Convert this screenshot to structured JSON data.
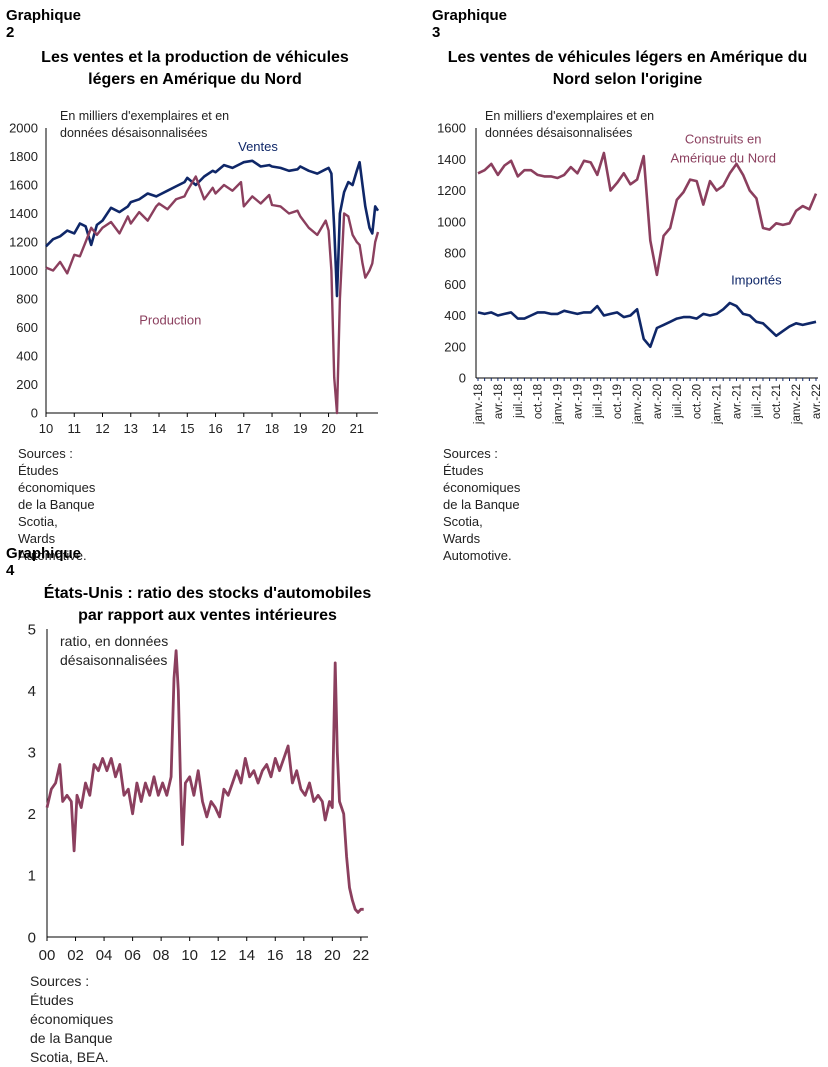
{
  "charts": [
    {
      "label": "Graphique 2",
      "title_lines": [
        "Les ventes et la production de véhicules",
        "légers en Amérique du Nord"
      ],
      "unit_lines": [
        "En milliers d'exemplaires et en",
        "données désaisonnalisées"
      ],
      "source_lines": [
        "Sources : Études économiques de la Banque Scotia,",
        "Wards Automotive."
      ]
    },
    {
      "label": "Graphique 3",
      "title_lines": [
        "Les ventes de véhicules légers en Amérique du",
        "Nord selon l'origine"
      ],
      "unit_lines": [
        "En milliers d'exemplaires et en",
        "données désaisonnalisées"
      ],
      "source_lines": [
        "Sources : Études économiques de la Banque Scotia, Wards",
        "Automotive."
      ]
    },
    {
      "label": "Graphique 4",
      "title_lines": [
        "États-Unis : ratio des stocks d'automobiles",
        "par rapport aux ventes intérieures"
      ],
      "unit_lines": [
        "ratio, en données",
        "désaisonnalisées"
      ],
      "source_lines": [
        "Sources : Études économiques de la Banque",
        "Scotia, BEA."
      ]
    }
  ],
  "colors": {
    "navy": "#0f2768",
    "maroon": "#8b3f5e"
  },
  "chart_data": [
    {
      "type": "line",
      "title": "Les ventes et la production de véhicules légers en Amérique du Nord",
      "ylabel": "En milliers d'exemplaires et en données désaisonnalisées",
      "ylim": [
        0,
        2000
      ],
      "yticks": [
        "0",
        "200",
        "400",
        "600",
        "800",
        "1000",
        "1200",
        "1400",
        "1600",
        "1800",
        "2000"
      ],
      "xlim": [
        2010,
        2021.75
      ],
      "xticks": [
        "10",
        "11",
        "12",
        "13",
        "14",
        "15",
        "16",
        "17",
        "18",
        "19",
        "20",
        "21"
      ],
      "series": [
        {
          "name": "Ventes",
          "color": "#0f2768",
          "label_pos": [
            2016.8,
            1840
          ],
          "points": [
            [
              2010,
              1170
            ],
            [
              2010.25,
              1220
            ],
            [
              2010.5,
              1240
            ],
            [
              2010.75,
              1280
            ],
            [
              2011,
              1260
            ],
            [
              2011.2,
              1330
            ],
            [
              2011.4,
              1310
            ],
            [
              2011.6,
              1180
            ],
            [
              2011.8,
              1320
            ],
            [
              2012,
              1350
            ],
            [
              2012.3,
              1440
            ],
            [
              2012.6,
              1410
            ],
            [
              2012.9,
              1450
            ],
            [
              2013,
              1480
            ],
            [
              2013.3,
              1500
            ],
            [
              2013.6,
              1540
            ],
            [
              2013.9,
              1520
            ],
            [
              2014,
              1530
            ],
            [
              2014.3,
              1560
            ],
            [
              2014.6,
              1590
            ],
            [
              2014.9,
              1620
            ],
            [
              2015,
              1650
            ],
            [
              2015.3,
              1600
            ],
            [
              2015.6,
              1660
            ],
            [
              2015.9,
              1700
            ],
            [
              2016,
              1690
            ],
            [
              2016.3,
              1740
            ],
            [
              2016.6,
              1720
            ],
            [
              2016.9,
              1750
            ],
            [
              2017,
              1760
            ],
            [
              2017.3,
              1770
            ],
            [
              2017.6,
              1730
            ],
            [
              2017.9,
              1740
            ],
            [
              2018,
              1730
            ],
            [
              2018.3,
              1720
            ],
            [
              2018.6,
              1700
            ],
            [
              2018.9,
              1710
            ],
            [
              2019,
              1730
            ],
            [
              2019.3,
              1700
            ],
            [
              2019.6,
              1680
            ],
            [
              2019.9,
              1710
            ],
            [
              2020,
              1720
            ],
            [
              2020.1,
              1680
            ],
            [
              2020.2,
              1300
            ],
            [
              2020.3,
              820
            ],
            [
              2020.4,
              1400
            ],
            [
              2020.55,
              1550
            ],
            [
              2020.7,
              1620
            ],
            [
              2020.85,
              1600
            ],
            [
              2021,
              1700
            ],
            [
              2021.1,
              1760
            ],
            [
              2021.2,
              1600
            ],
            [
              2021.3,
              1450
            ],
            [
              2021.45,
              1300
            ],
            [
              2021.55,
              1260
            ],
            [
              2021.65,
              1450
            ],
            [
              2021.75,
              1420
            ]
          ]
        },
        {
          "name": "Production",
          "color": "#8b3f5e",
          "label_pos": [
            2013.3,
            620
          ],
          "points": [
            [
              2010,
              1020
            ],
            [
              2010.25,
              1000
            ],
            [
              2010.5,
              1060
            ],
            [
              2010.75,
              980
            ],
            [
              2011,
              1110
            ],
            [
              2011.2,
              1100
            ],
            [
              2011.4,
              1200
            ],
            [
              2011.6,
              1300
            ],
            [
              2011.8,
              1250
            ],
            [
              2012,
              1300
            ],
            [
              2012.3,
              1340
            ],
            [
              2012.6,
              1260
            ],
            [
              2012.9,
              1380
            ],
            [
              2013,
              1330
            ],
            [
              2013.3,
              1410
            ],
            [
              2013.6,
              1350
            ],
            [
              2013.9,
              1450
            ],
            [
              2014,
              1470
            ],
            [
              2014.3,
              1430
            ],
            [
              2014.6,
              1500
            ],
            [
              2014.9,
              1520
            ],
            [
              2015,
              1560
            ],
            [
              2015.3,
              1660
            ],
            [
              2015.6,
              1500
            ],
            [
              2015.9,
              1580
            ],
            [
              2016,
              1540
            ],
            [
              2016.3,
              1600
            ],
            [
              2016.6,
              1560
            ],
            [
              2016.9,
              1620
            ],
            [
              2017,
              1450
            ],
            [
              2017.3,
              1520
            ],
            [
              2017.6,
              1470
            ],
            [
              2017.9,
              1530
            ],
            [
              2018,
              1460
            ],
            [
              2018.3,
              1450
            ],
            [
              2018.6,
              1400
            ],
            [
              2018.9,
              1420
            ],
            [
              2019,
              1380
            ],
            [
              2019.3,
              1300
            ],
            [
              2019.6,
              1250
            ],
            [
              2019.9,
              1350
            ],
            [
              2020,
              1280
            ],
            [
              2020.1,
              1000
            ],
            [
              2020.2,
              250
            ],
            [
              2020.3,
              0
            ],
            [
              2020.4,
              800
            ],
            [
              2020.55,
              1400
            ],
            [
              2020.7,
              1380
            ],
            [
              2020.85,
              1250
            ],
            [
              2021,
              1200
            ],
            [
              2021.1,
              1180
            ],
            [
              2021.2,
              1050
            ],
            [
              2021.3,
              950
            ],
            [
              2021.45,
              1000
            ],
            [
              2021.55,
              1050
            ],
            [
              2021.65,
              1200
            ],
            [
              2021.75,
              1270
            ]
          ]
        }
      ]
    },
    {
      "type": "line",
      "title": "Les ventes de véhicules légers en Amérique du Nord selon l'origine",
      "ylabel": "En milliers d'exemplaires et en données désaisonnalisées",
      "ylim": [
        0,
        1600
      ],
      "yticks": [
        "0",
        "200",
        "400",
        "600",
        "800",
        "1000",
        "1200",
        "1400",
        "1600"
      ],
      "x_range_months": [
        "janv.-18",
        "avr.-22"
      ],
      "xticks": [
        "janv.-18",
        "avr.-18",
        "juil.-18",
        "oct.-18",
        "janv.-19",
        "avr.-19",
        "juil.-19",
        "oct.-19",
        "janv.-20",
        "avr.-20",
        "juil.-20",
        "oct.-20",
        "janv.-21",
        "avr.-21",
        "juil.-21",
        "oct.-21",
        "janv.-22",
        "avr.-22"
      ],
      "series": [
        {
          "name": "Construits en Amérique du Nord",
          "label_lines": [
            "Construits en",
            "Amérique du Nord"
          ],
          "color": "#8b3f5e",
          "label_pos": [
            37,
            1500
          ],
          "values": [
            1310,
            1330,
            1370,
            1300,
            1360,
            1390,
            1290,
            1330,
            1330,
            1300,
            1290,
            1290,
            1280,
            1300,
            1350,
            1310,
            1390,
            1380,
            1300,
            1440,
            1200,
            1250,
            1310,
            1240,
            1270,
            1420,
            880,
            660,
            910,
            960,
            1140,
            1190,
            1270,
            1260,
            1110,
            1260,
            1200,
            1230,
            1310,
            1370,
            1300,
            1200,
            1150,
            960,
            950,
            990,
            980,
            990,
            1070,
            1100,
            1080,
            1180
          ]
        },
        {
          "name": "Importés",
          "label_lines": [
            "Importés"
          ],
          "color": "#0f2768",
          "label_pos": [
            42,
            600
          ],
          "values": [
            420,
            410,
            420,
            400,
            410,
            420,
            380,
            380,
            400,
            420,
            420,
            410,
            410,
            430,
            420,
            410,
            420,
            420,
            460,
            400,
            410,
            420,
            390,
            400,
            440,
            250,
            200,
            320,
            340,
            360,
            380,
            390,
            390,
            380,
            410,
            400,
            410,
            440,
            480,
            460,
            410,
            400,
            360,
            350,
            310,
            270,
            300,
            330,
            350,
            340,
            350,
            360
          ]
        }
      ]
    },
    {
      "type": "line",
      "title": "États-Unis : ratio des stocks d'automobiles par rapport aux ventes intérieures",
      "ylabel": "ratio, en données désaisonnalisées",
      "ylim": [
        0,
        5
      ],
      "yticks": [
        "0",
        "1",
        "2",
        "3",
        "4",
        "5"
      ],
      "xlim": [
        2000,
        2022.5
      ],
      "xticks": [
        "00",
        "02",
        "04",
        "06",
        "08",
        "10",
        "12",
        "14",
        "16",
        "18",
        "20",
        "22"
      ],
      "series": [
        {
          "name": "ratio",
          "color": "#8b3f5e",
          "points": [
            [
              2000,
              2.1
            ],
            [
              2000.3,
              2.4
            ],
            [
              2000.6,
              2.5
            ],
            [
              2000.9,
              2.8
            ],
            [
              2001.1,
              2.2
            ],
            [
              2001.4,
              2.3
            ],
            [
              2001.7,
              2.2
            ],
            [
              2001.9,
              1.4
            ],
            [
              2002.1,
              2.3
            ],
            [
              2002.4,
              2.1
            ],
            [
              2002.7,
              2.5
            ],
            [
              2003,
              2.3
            ],
            [
              2003.3,
              2.8
            ],
            [
              2003.6,
              2.7
            ],
            [
              2003.9,
              2.9
            ],
            [
              2004.2,
              2.7
            ],
            [
              2004.5,
              2.9
            ],
            [
              2004.8,
              2.6
            ],
            [
              2005.1,
              2.8
            ],
            [
              2005.4,
              2.3
            ],
            [
              2005.7,
              2.4
            ],
            [
              2006,
              2.0
            ],
            [
              2006.3,
              2.5
            ],
            [
              2006.6,
              2.2
            ],
            [
              2006.9,
              2.5
            ],
            [
              2007.2,
              2.3
            ],
            [
              2007.5,
              2.6
            ],
            [
              2007.8,
              2.3
            ],
            [
              2008.1,
              2.5
            ],
            [
              2008.4,
              2.3
            ],
            [
              2008.7,
              2.6
            ],
            [
              2008.9,
              4.2
            ],
            [
              2009.05,
              4.65
            ],
            [
              2009.2,
              4.0
            ],
            [
              2009.35,
              2.6
            ],
            [
              2009.5,
              1.5
            ],
            [
              2009.7,
              2.5
            ],
            [
              2010,
              2.6
            ],
            [
              2010.3,
              2.3
            ],
            [
              2010.6,
              2.7
            ],
            [
              2010.9,
              2.2
            ],
            [
              2011.2,
              1.95
            ],
            [
              2011.5,
              2.2
            ],
            [
              2011.8,
              2.1
            ],
            [
              2012.1,
              1.95
            ],
            [
              2012.4,
              2.4
            ],
            [
              2012.7,
              2.3
            ],
            [
              2013,
              2.5
            ],
            [
              2013.3,
              2.7
            ],
            [
              2013.6,
              2.5
            ],
            [
              2013.9,
              2.9
            ],
            [
              2014.2,
              2.6
            ],
            [
              2014.5,
              2.7
            ],
            [
              2014.8,
              2.5
            ],
            [
              2015.1,
              2.7
            ],
            [
              2015.4,
              2.8
            ],
            [
              2015.7,
              2.6
            ],
            [
              2016,
              2.9
            ],
            [
              2016.3,
              2.7
            ],
            [
              2016.6,
              2.9
            ],
            [
              2016.9,
              3.1
            ],
            [
              2017.2,
              2.5
            ],
            [
              2017.5,
              2.7
            ],
            [
              2017.8,
              2.4
            ],
            [
              2018.1,
              2.3
            ],
            [
              2018.4,
              2.5
            ],
            [
              2018.7,
              2.2
            ],
            [
              2019,
              2.3
            ],
            [
              2019.3,
              2.2
            ],
            [
              2019.5,
              1.9
            ],
            [
              2019.8,
              2.2
            ],
            [
              2020,
              2.1
            ],
            [
              2020.2,
              4.45
            ],
            [
              2020.35,
              3.0
            ],
            [
              2020.5,
              2.2
            ],
            [
              2020.8,
              2.0
            ],
            [
              2021,
              1.3
            ],
            [
              2021.2,
              0.8
            ],
            [
              2021.4,
              0.6
            ],
            [
              2021.6,
              0.45
            ],
            [
              2021.8,
              0.4
            ],
            [
              2022,
              0.45
            ],
            [
              2022.2,
              0.45
            ]
          ]
        }
      ]
    }
  ]
}
